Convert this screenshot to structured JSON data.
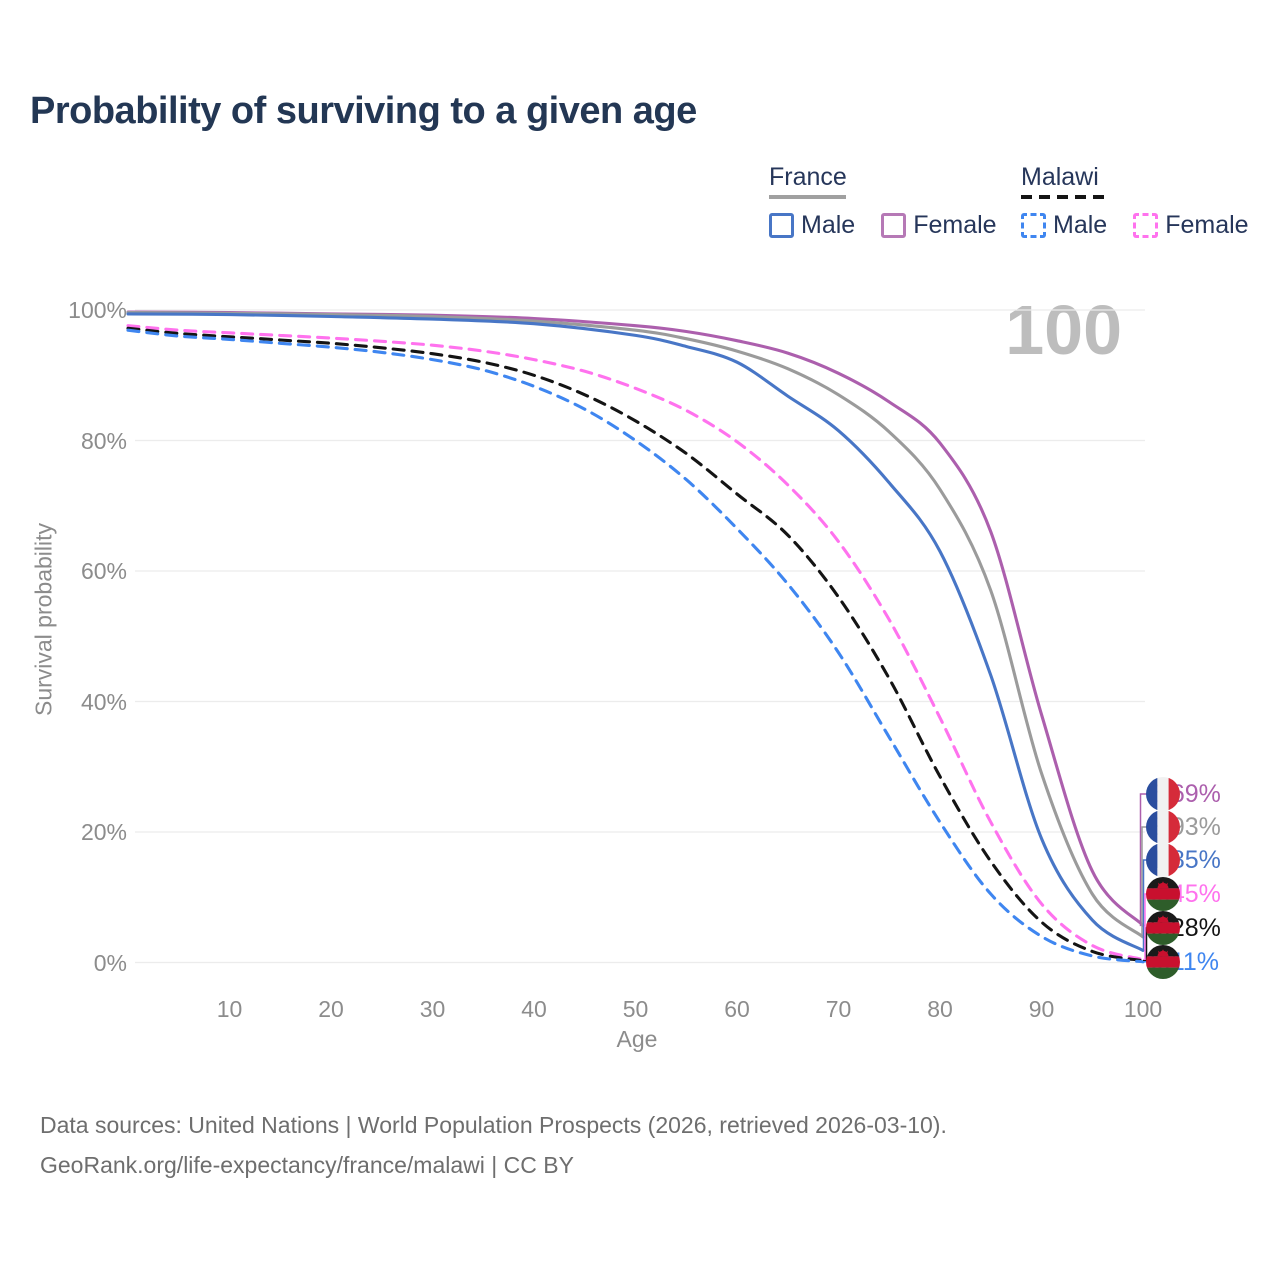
{
  "title": "Probability of surviving to a given age",
  "watermark_age": "100",
  "legend": {
    "groups": [
      {
        "name": "France",
        "line_style": "solid",
        "underline_color": "#a0a0a0",
        "items": [
          {
            "label": "Male",
            "color": "#4876c6",
            "dashed": false
          },
          {
            "label": "Female",
            "color": "#b679b6",
            "dashed": false
          }
        ]
      },
      {
        "name": "Malawi",
        "line_style": "dashed",
        "underline_color": "#141414",
        "items": [
          {
            "label": "Male",
            "color": "#3f86f0",
            "dashed": true
          },
          {
            "label": "Female",
            "color": "#ff72ee",
            "dashed": true
          }
        ]
      }
    ]
  },
  "chart_data": {
    "type": "line",
    "title": "Probability of surviving to a given age",
    "xlabel": "Age",
    "ylabel": "Survival probability",
    "xlim": [
      0,
      100
    ],
    "ylim": [
      0,
      100
    ],
    "grid": "horizontal-only",
    "legend_position": "top-right",
    "y_ticks": [
      {
        "label": "100%",
        "value": 100
      },
      {
        "label": "80%",
        "value": 80
      },
      {
        "label": "60%",
        "value": 60
      },
      {
        "label": "40%",
        "value": 40
      },
      {
        "label": "20%",
        "value": 20
      },
      {
        "label": "0%",
        "value": 0
      }
    ],
    "x_ticks": [
      {
        "label": "10",
        "value": 10
      },
      {
        "label": "20",
        "value": 20
      },
      {
        "label": "30",
        "value": 30
      },
      {
        "label": "40",
        "value": 40
      },
      {
        "label": "50",
        "value": 50
      },
      {
        "label": "60",
        "value": 60
      },
      {
        "label": "70",
        "value": 70
      },
      {
        "label": "80",
        "value": 80
      },
      {
        "label": "90",
        "value": 90
      },
      {
        "label": "100",
        "value": 100
      }
    ],
    "series": [
      {
        "name": "France Female",
        "country": "France",
        "sex": "Female",
        "color": "#ac5fad",
        "dashed": false,
        "flag": "france",
        "end_label": "5.69%",
        "points": [
          [
            0,
            99.7
          ],
          [
            10,
            99.6
          ],
          [
            20,
            99.4
          ],
          [
            30,
            99.2
          ],
          [
            40,
            98.7
          ],
          [
            50,
            97.6
          ],
          [
            55,
            96.7
          ],
          [
            60,
            95.3
          ],
          [
            65,
            93.4
          ],
          [
            70,
            90.3
          ],
          [
            75,
            85.9
          ],
          [
            80,
            79.6
          ],
          [
            85,
            66
          ],
          [
            90,
            38
          ],
          [
            95,
            14
          ],
          [
            100,
            5.69
          ]
        ]
      },
      {
        "name": "France",
        "country": "France",
        "sex": "Both",
        "color": "#9b9b9b",
        "dashed": false,
        "flag": "france",
        "end_label": "3.93%",
        "points": [
          [
            0,
            99.6
          ],
          [
            10,
            99.5
          ],
          [
            20,
            99.3
          ],
          [
            30,
            99.0
          ],
          [
            40,
            98.3
          ],
          [
            50,
            96.9
          ],
          [
            55,
            95.6
          ],
          [
            60,
            93.7
          ],
          [
            65,
            91.0
          ],
          [
            70,
            87.0
          ],
          [
            75,
            81.3
          ],
          [
            80,
            72.5
          ],
          [
            85,
            57
          ],
          [
            90,
            29
          ],
          [
            95,
            10.5
          ],
          [
            100,
            3.93
          ]
        ]
      },
      {
        "name": "France Male",
        "country": "France",
        "sex": "Male",
        "color": "#4876c6",
        "dashed": false,
        "flag": "france",
        "end_label": "1.85%",
        "points": [
          [
            0,
            99.4
          ],
          [
            10,
            99.3
          ],
          [
            20,
            99.0
          ],
          [
            30,
            98.6
          ],
          [
            40,
            97.9
          ],
          [
            50,
            96.1
          ],
          [
            55,
            94.4
          ],
          [
            60,
            92.0
          ],
          [
            65,
            86.8
          ],
          [
            70,
            81.5
          ],
          [
            75,
            73.5
          ],
          [
            80,
            63
          ],
          [
            85,
            44
          ],
          [
            90,
            19
          ],
          [
            95,
            6.5
          ],
          [
            100,
            1.85
          ]
        ]
      },
      {
        "name": "Malawi Female",
        "country": "Malawi",
        "sex": "Female",
        "color": "#ff72ee",
        "dashed": true,
        "flag": "malawi",
        "end_label": "0.45%",
        "points": [
          [
            0,
            97.6
          ],
          [
            5,
            96.9
          ],
          [
            10,
            96.5
          ],
          [
            15,
            96.1
          ],
          [
            20,
            95.7
          ],
          [
            25,
            95.2
          ],
          [
            30,
            94.6
          ],
          [
            35,
            93.7
          ],
          [
            40,
            92.4
          ],
          [
            45,
            90.6
          ],
          [
            50,
            88.0
          ],
          [
            55,
            84.6
          ],
          [
            60,
            79.8
          ],
          [
            65,
            73.2
          ],
          [
            70,
            64.5
          ],
          [
            75,
            52.5
          ],
          [
            80,
            37.5
          ],
          [
            85,
            21.5
          ],
          [
            90,
            9.0
          ],
          [
            95,
            2.6
          ],
          [
            100,
            0.45
          ]
        ]
      },
      {
        "name": "Malawi",
        "country": "Malawi",
        "sex": "Both",
        "color": "#141414",
        "dashed": true,
        "flag": "malawi",
        "end_label": "0.28%",
        "points": [
          [
            0,
            97.2
          ],
          [
            5,
            96.4
          ],
          [
            10,
            95.9
          ],
          [
            15,
            95.4
          ],
          [
            20,
            94.9
          ],
          [
            25,
            94.2
          ],
          [
            30,
            93.3
          ],
          [
            35,
            92.0
          ],
          [
            40,
            90.0
          ],
          [
            45,
            87.0
          ],
          [
            50,
            83.0
          ],
          [
            55,
            78.0
          ],
          [
            60,
            71.8
          ],
          [
            65,
            65.5
          ],
          [
            70,
            56.0
          ],
          [
            75,
            43.5
          ],
          [
            80,
            28.5
          ],
          [
            85,
            15.5
          ],
          [
            90,
            6.2
          ],
          [
            95,
            1.7
          ],
          [
            100,
            0.28
          ]
        ]
      },
      {
        "name": "Malawi Male",
        "country": "Malawi",
        "sex": "Male",
        "color": "#3f86f0",
        "dashed": true,
        "flag": "malawi",
        "end_label": "0.11%",
        "points": [
          [
            0,
            96.9
          ],
          [
            5,
            96.0
          ],
          [
            10,
            95.5
          ],
          [
            15,
            94.9
          ],
          [
            20,
            94.3
          ],
          [
            25,
            93.5
          ],
          [
            30,
            92.4
          ],
          [
            35,
            90.8
          ],
          [
            40,
            88.3
          ],
          [
            45,
            84.8
          ],
          [
            50,
            80.0
          ],
          [
            55,
            74.0
          ],
          [
            60,
            66.5
          ],
          [
            65,
            58.0
          ],
          [
            70,
            47.5
          ],
          [
            75,
            34.5
          ],
          [
            80,
            21.5
          ],
          [
            85,
            10.5
          ],
          [
            90,
            4.0
          ],
          [
            95,
            1.0
          ],
          [
            100,
            0.11
          ]
        ]
      }
    ]
  },
  "flag_colors": {
    "france": {
      "left": "#2a4d9e",
      "middle": "#f1f1f1",
      "right": "#d52b3a"
    },
    "malawi": {
      "top": "#1a1a1a",
      "middle": "#c8102e",
      "bottom": "#2e5d2a",
      "sun": "#c8102e"
    }
  },
  "footer": {
    "line1": "Data sources: United Nations | World Population Prospects (2026, retrieved 2026-03-10).",
    "line2": "GeoRank.org/life-expectancy/france/malawi | CC BY"
  }
}
